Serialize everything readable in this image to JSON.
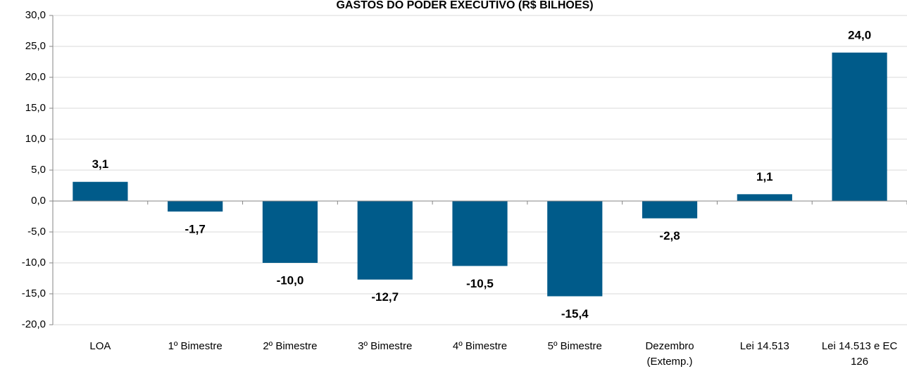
{
  "chart_data": {
    "type": "bar",
    "title": "GASTOS DO PODER EXECUTIVO (R$ BILHÕES)",
    "categories": [
      "LOA",
      "1º Bimestre",
      "2º Bimestre",
      "3º Bimestre",
      "4º Bimestre",
      "5º Bimestre",
      "Dezembro (Extemp.)",
      "Lei 14.513",
      "Lei 14.513 e EC 126"
    ],
    "values": [
      3.1,
      -1.7,
      -10.0,
      -12.7,
      -10.5,
      -15.4,
      -2.8,
      1.1,
      24.0
    ],
    "value_labels": [
      "3,1",
      "-1,7",
      "-10,0",
      "-12,7",
      "-10,5",
      "-15,4",
      "-2,8",
      "1,1",
      "24,0"
    ],
    "color": "#005b8a",
    "ylim": [
      -20,
      30
    ],
    "yticks": [
      {
        "value": -20,
        "label": "-20,0"
      },
      {
        "value": -15,
        "label": "-15,0"
      },
      {
        "value": -10,
        "label": "-10,0"
      },
      {
        "value": -5,
        "label": "-5,0"
      },
      {
        "value": 0,
        "label": "0,0"
      },
      {
        "value": 5,
        "label": "5,0"
      },
      {
        "value": 10,
        "label": "10,0"
      },
      {
        "value": 15,
        "label": "15,0"
      },
      {
        "value": 20,
        "label": "20,0"
      },
      {
        "value": 25,
        "label": "25,0"
      },
      {
        "value": 30,
        "label": "30,0"
      }
    ],
    "grid": true
  }
}
